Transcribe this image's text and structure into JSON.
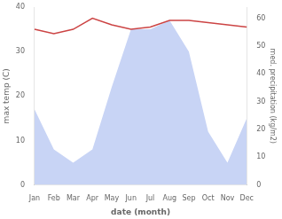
{
  "chart_data": {
    "type": "line",
    "categories": [
      "Jan",
      "Feb",
      "Mar",
      "Apr",
      "May",
      "Jun",
      "Jul",
      "Aug",
      "Sep",
      "Oct",
      "Nov",
      "Dec"
    ],
    "series": [
      {
        "type": "area",
        "color": "#c8d4f5",
        "values": [
          17,
          8,
          5,
          8,
          22,
          35,
          35,
          37,
          30,
          12,
          5,
          15
        ]
      },
      {
        "type": "line",
        "color": "#cc4444",
        "values": [
          35,
          34,
          35,
          37.5,
          36,
          35,
          35.5,
          37,
          37,
          36.5,
          36,
          35.5
        ]
      }
    ],
    "xlabel": "date (month)",
    "ylabel": "max temp (C)",
    "y2label": "med. precipitation (kg/m2)",
    "ylim": [
      0,
      40
    ],
    "yticks": [
      0,
      10,
      20,
      30,
      40
    ],
    "y2lim": [
      0,
      64
    ],
    "y2ticks": [
      0,
      10,
      20,
      30,
      40,
      50,
      60
    ],
    "grid": false
  }
}
